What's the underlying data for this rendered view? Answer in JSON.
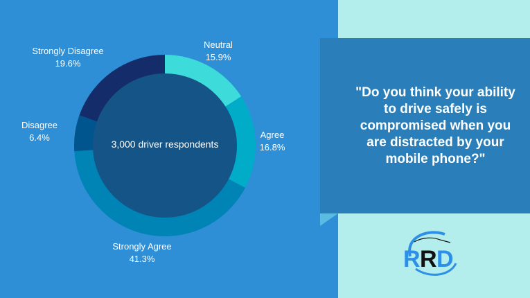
{
  "chart_data": {
    "type": "pie",
    "variant": "donut",
    "center_label": "3,000 driver respondents",
    "slices": [
      {
        "name": "Neutral",
        "value": 15.9,
        "label": "15.9%",
        "color": "#3ddbd9"
      },
      {
        "name": "Agree",
        "value": 16.8,
        "label": "16.8%",
        "color": "#00acc8"
      },
      {
        "name": "Strongly Agree",
        "value": 41.3,
        "label": "41.3%",
        "color": "#0083b5"
      },
      {
        "name": "Disagree",
        "value": 6.4,
        "label": "6.4%",
        "color": "#00558f"
      },
      {
        "name": "Strongly Disagree",
        "value": 19.6,
        "label": "19.6%",
        "color": "#142d6a"
      }
    ],
    "start_angle": "12 o'clock",
    "direction": "clockwise"
  },
  "question": "\"Do you think your ability to drive safely is compromised when you are distracted by your mobile phone?\"",
  "logo": {
    "text": "RRD",
    "colors": {
      "primary": "#2e8fe6",
      "accent": "#111111"
    }
  }
}
